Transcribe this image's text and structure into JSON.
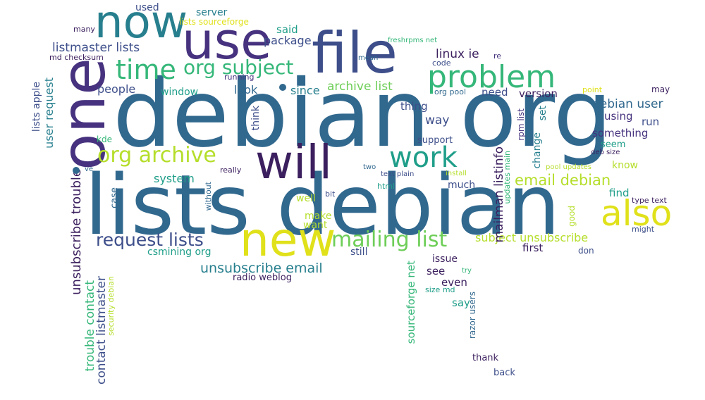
{
  "title": "Word cloud",
  "colors": {
    "dark_purple": "#3b1f5e",
    "purple": "#46327e",
    "indigo": "#3d4e8a",
    "blue": "#31688e",
    "teal_blue": "#277f8e",
    "teal": "#1f9e89",
    "green": "#35b779",
    "light_green": "#6ece58",
    "yellow_green": "#b5de2b",
    "yellow": "#e0e11a"
  },
  "words": {
    "debian_org": "debian org",
    "lists_debian": "lists debian",
    "one": "one",
    "now": "now",
    "use": "use",
    "file": "file",
    "will": "will",
    "new": "new",
    "problem": "problem",
    "also": "also",
    "time": "time",
    "org_subject": "org subject",
    "org_archive": "org archive",
    "work": "work",
    "mailing_list": "mailing list",
    "request_lists": "request lists",
    "unsubscribe_email": "unsubscribe email",
    "email_debian": "email debian",
    "used": "used",
    "server": "server",
    "lists_sourceforge": "lists sourceforge",
    "said": "said",
    "many": "many",
    "freshrpms_net": "freshrpms net",
    "listmaster_lists": "listmaster lists",
    "package": "package",
    "md_checksum": "md checksum",
    "linux_ie": "linux ie",
    "re": "re",
    "mean": "mean",
    "code": "code",
    "running": "running",
    "people": "people",
    "look": "look",
    "since": "since",
    "archive_list": "archive list",
    "window": "window",
    "org_pool": "org pool",
    "need": "need",
    "version": "version",
    "point": "point",
    "may": "may",
    "thing": "thing",
    "debian_user": "debian user",
    "way": "way",
    "using": "using",
    "run": "run",
    "something": "something",
    "deb_size": "deb size",
    "seem": "seem",
    "support": "support",
    "know": "know",
    "pool_updates": "pool updates",
    "kde": "kde",
    "ve": "ve",
    "really": "really",
    "two": "two",
    "text_plain": "text plain",
    "install": "install",
    "system": "system",
    "html": "html",
    "much": "much",
    "find": "find",
    "bit": "bit",
    "well": "well",
    "type_text": "type text",
    "make": "make",
    "want": "want",
    "might": "might",
    "subject_unsubscribe": "subject unsubscribe",
    "csmining_org": "csmining org",
    "still": "still",
    "first": "first",
    "don": "don",
    "issue": "issue",
    "see": "see",
    "try": "try",
    "radio_weblog": "radio weblog",
    "even": "even",
    "size_md": "size md",
    "say": "say",
    "thank": "thank",
    "back": "back",
    "lists_apple": "lists apple",
    "user_request": "user request",
    "unsubscribe_trouble": "unsubscribe trouble",
    "trouble_contact": "trouble contact",
    "contact_listmaster": "contact listmaster",
    "security_debian": "security debian",
    "case": "case",
    "without": "without",
    "think": "think",
    "mailman_listinfo": "mailman listinfo",
    "rpm_list": "rpm list",
    "change": "change",
    "set": "set",
    "updates_main": "updates main",
    "good": "good",
    "sourceforge_net": "sourceforge net",
    "razor_users": "razor users"
  }
}
